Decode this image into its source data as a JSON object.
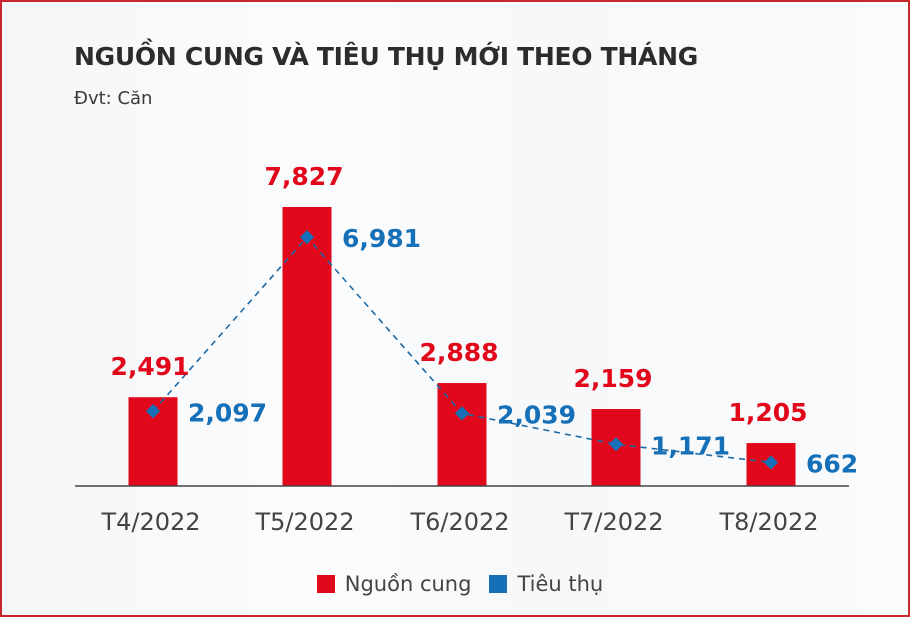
{
  "title": "NGUỒN CUNG VÀ TIÊU THỤ MỚI THEO THÁNG",
  "subtitle": "Đvt: Căn",
  "colors": {
    "supply": "#e0081a",
    "consumption": "#1570b8",
    "axis": "#444444",
    "frame": "#c8272d"
  },
  "legend": [
    {
      "label": "Nguồn cung",
      "color": "#e0081a"
    },
    {
      "label": "Tiêu thụ",
      "color": "#1570b8"
    }
  ],
  "chart_data": {
    "type": "bar",
    "title": "NGUỒN CUNG VÀ TIÊU THỤ MỚI THEO THÁNG",
    "subtitle": "Đvt: Căn",
    "xlabel": "",
    "ylabel": "",
    "categories": [
      "T4/2022",
      "T5/2022",
      "T6/2022",
      "T7/2022",
      "T8/2022"
    ],
    "series": [
      {
        "name": "Nguồn cung",
        "type": "bar",
        "color": "#e0081a",
        "values": [
          2491,
          7827,
          2888,
          2159,
          1205
        ],
        "labels": [
          "2,491",
          "7,827",
          "2,888",
          "2,159",
          "1,205"
        ]
      },
      {
        "name": "Tiêu thụ",
        "type": "line",
        "style": "dashed",
        "marker": "diamond",
        "color": "#1570b8",
        "values": [
          2097,
          6981,
          2039,
          1171,
          662
        ],
        "labels": [
          "2,097",
          "6,981",
          "2,039",
          "1,171",
          "662"
        ]
      }
    ],
    "grid": false,
    "y_axis_visible": false,
    "legend_position": "bottom"
  }
}
